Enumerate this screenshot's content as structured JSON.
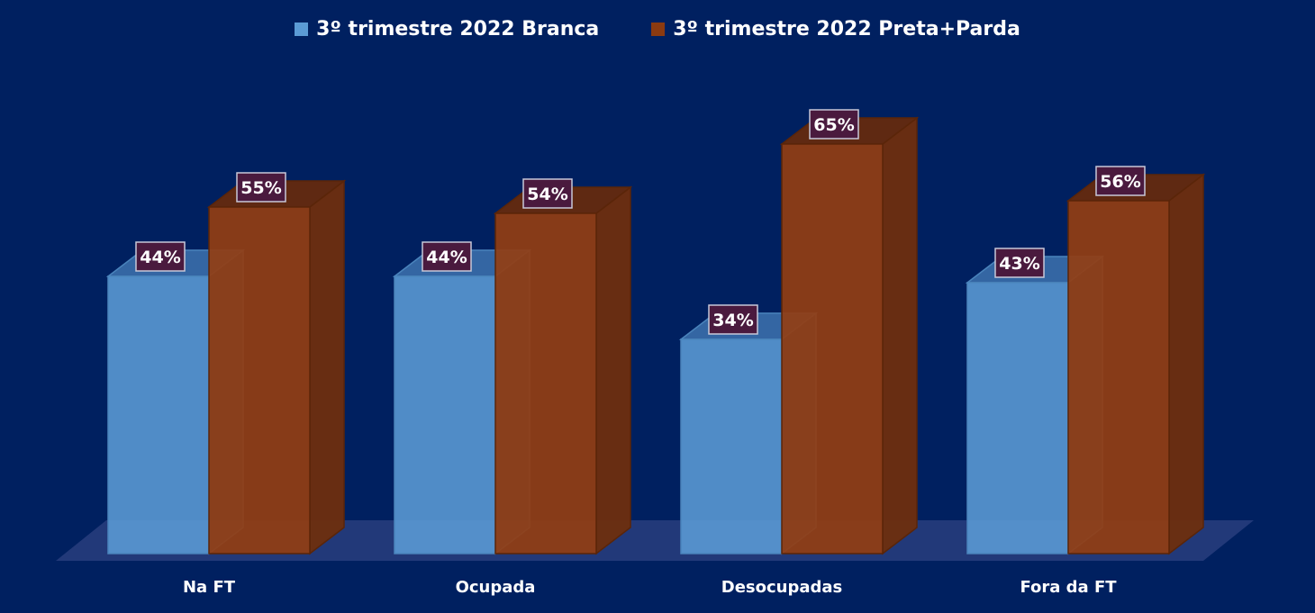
{
  "chart_data": {
    "type": "bar",
    "categories": [
      "Na FT",
      "Ocupada",
      "Desocupadas",
      "Fora da FT"
    ],
    "series": [
      {
        "name": "3º trimestre 2022 Branca",
        "values": [
          44,
          44,
          34,
          43
        ],
        "labels": [
          "44%",
          "44%",
          "34%",
          "43%"
        ],
        "color": "#5B9BD5"
      },
      {
        "name": "3º trimestre 2022 Preta+Parda",
        "values": [
          55,
          54,
          65,
          56
        ],
        "labels": [
          "55%",
          "54%",
          "65%",
          "56%"
        ],
        "color": "#8B3A10"
      }
    ],
    "ylim": [
      0,
      70
    ],
    "grid": false,
    "legend_position": "top",
    "background": "#002060",
    "floor_color": "#2A4080",
    "data_label_color": "#4A1A3E"
  }
}
